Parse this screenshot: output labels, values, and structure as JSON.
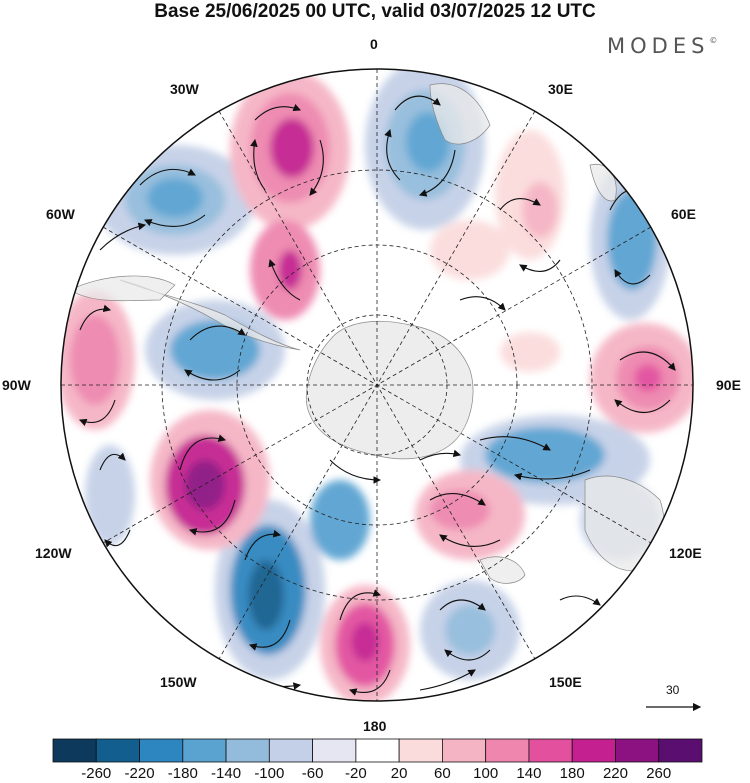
{
  "title": "Base 25/06/2025 00 UTC, valid 03/07/2025 12 UTC",
  "brand": {
    "name": "MODES",
    "mark": "©"
  },
  "longitude_labels": {
    "top": "0",
    "top_right": "30E",
    "right_upper": "60E",
    "right": "90E",
    "right_lower": "120E",
    "bottom_right": "150E",
    "bottom": "180",
    "bottom_left": "150W",
    "left_lower": "120W",
    "left": "90W",
    "left_upper": "60W",
    "top_left": "30W"
  },
  "reference_vector": {
    "value": "30"
  },
  "colorbar": {
    "ticks": [
      "-260",
      "-220",
      "-180",
      "-140",
      "-100",
      "-60",
      "-20",
      "20",
      "60",
      "100",
      "140",
      "180",
      "220",
      "260"
    ],
    "colors": [
      "#0d3a5c",
      "#125f8f",
      "#2d86bf",
      "#5aa3d1",
      "#93bcdc",
      "#c4d0e7",
      "#e6e6f2",
      "#ffffff",
      "#fbdcdc",
      "#f5b4c4",
      "#ee86ae",
      "#e2509e",
      "#c42090",
      "#8c1282",
      "#5a0e70"
    ]
  },
  "map": {
    "projection": "south-polar-stereographic",
    "land_color": "#ececec",
    "lines": "dashed graticule"
  }
}
